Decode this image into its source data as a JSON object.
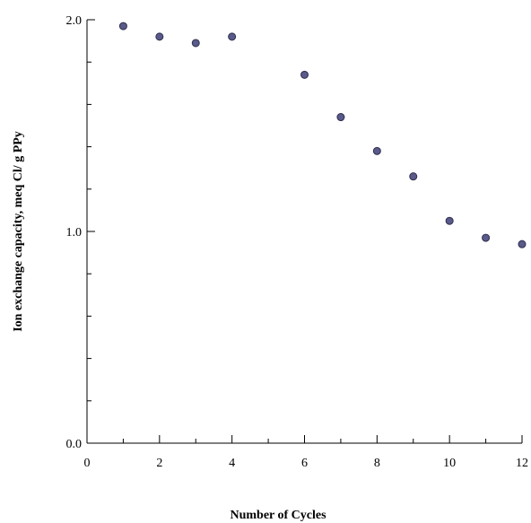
{
  "chart_data": {
    "type": "scatter",
    "title": "",
    "xlabel": "Number of Cycles",
    "ylabel": "Ion exchange capacity, meq Cl/ g PPy",
    "xlim": [
      0,
      12
    ],
    "ylim": [
      0,
      2
    ],
    "x_ticks": [
      "0",
      "2",
      "4",
      "6",
      "8",
      "10",
      "12"
    ],
    "y_ticks": [
      "0.0",
      "1.0",
      "2.0"
    ],
    "grid": false,
    "marker_color": "#5a5a8a",
    "series": [
      {
        "x": [
          1,
          2,
          3,
          4,
          6,
          7,
          8,
          9,
          10,
          11,
          12
        ],
        "y": [
          1.97,
          1.92,
          1.89,
          1.92,
          1.74,
          1.54,
          1.38,
          1.26,
          1.05,
          0.97,
          0.94
        ]
      }
    ]
  }
}
